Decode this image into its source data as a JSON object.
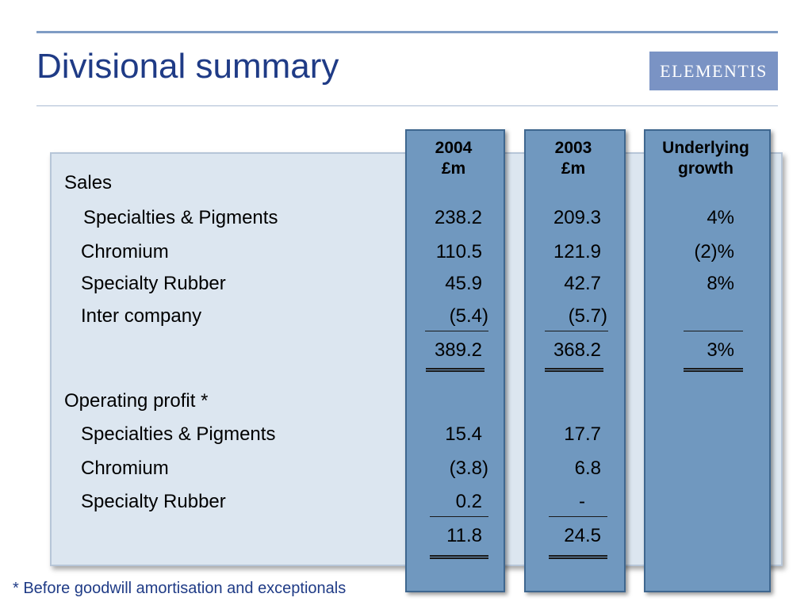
{
  "slide": {
    "title": "Divisional summary",
    "logo_text": "ELEMENTIS",
    "footnote": "* Before goodwill amortisation and exceptionals"
  },
  "columns": {
    "c2004": {
      "line1": "2004",
      "line2": "£m"
    },
    "c2003": {
      "line1": "2003",
      "line2": "£m"
    },
    "growth": {
      "line1": "Underlying",
      "line2": "growth"
    }
  },
  "sales": {
    "heading": "Sales",
    "rows": [
      {
        "label": "Specialties & Pigments",
        "v2004": "238.2",
        "v2003": "209.3",
        "growth": "4%"
      },
      {
        "label": "Chromium",
        "v2004": "110.5",
        "v2003": "121.9",
        "growth": "(2)%"
      },
      {
        "label": "Specialty Rubber",
        "v2004": "45.9",
        "v2003": "42.7",
        "growth": "8%"
      },
      {
        "label": "Inter company",
        "v2004": "(5.4)",
        "v2003": "(5.7)",
        "growth": ""
      }
    ],
    "total": {
      "v2004": "389.2",
      "v2003": "368.2",
      "growth": "3%"
    }
  },
  "profit": {
    "heading": "Operating profit *",
    "rows": [
      {
        "label": "Specialties & Pigments",
        "v2004": "15.4",
        "v2003": "17.7"
      },
      {
        "label": "Chromium",
        "v2004": "(3.8)",
        "v2003": "6.8"
      },
      {
        "label": "Specialty Rubber",
        "v2004": "0.2",
        "v2003": "-"
      }
    ],
    "total": {
      "v2004": "11.8",
      "v2003": "24.5"
    }
  }
}
